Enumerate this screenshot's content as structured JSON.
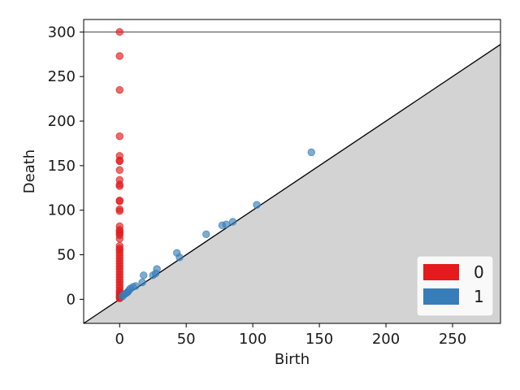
{
  "chart_data": {
    "type": "scatter",
    "xlabel": "Birth",
    "ylabel": "Death",
    "xlim": [
      -27,
      286
    ],
    "ylim": [
      -27,
      314
    ],
    "xticks": [
      0,
      50,
      100,
      150,
      200,
      250
    ],
    "yticks": [
      0,
      50,
      100,
      150,
      200,
      250,
      300
    ],
    "infinity_line": 300,
    "diagonal": true,
    "legend_position": "bottom-right",
    "series": [
      {
        "name": "0",
        "color": "#e41a1c",
        "points": [
          [
            0,
            300
          ],
          [
            0,
            273
          ],
          [
            0,
            235
          ],
          [
            0,
            183
          ],
          [
            0,
            161
          ],
          [
            0,
            156
          ],
          [
            0,
            155
          ],
          [
            0,
            145
          ],
          [
            0,
            134
          ],
          [
            0,
            129
          ],
          [
            0,
            127
          ],
          [
            0,
            111
          ],
          [
            0,
            110
          ],
          [
            0,
            101
          ],
          [
            0,
            99
          ],
          [
            0,
            82
          ],
          [
            0,
            78
          ],
          [
            0,
            76
          ],
          [
            0,
            74
          ],
          [
            0,
            72
          ],
          [
            0,
            68
          ],
          [
            0,
            60
          ],
          [
            0,
            57
          ],
          [
            0,
            55
          ],
          [
            0,
            52
          ],
          [
            0,
            49
          ],
          [
            0,
            46
          ],
          [
            0,
            43
          ],
          [
            0,
            40
          ],
          [
            0,
            37
          ],
          [
            0,
            34
          ],
          [
            0,
            31
          ],
          [
            0,
            28
          ],
          [
            0,
            25
          ],
          [
            0,
            22
          ],
          [
            0,
            19
          ],
          [
            0,
            16
          ],
          [
            0,
            13
          ],
          [
            0,
            10
          ],
          [
            0,
            8
          ],
          [
            0,
            6
          ],
          [
            0,
            4
          ],
          [
            0,
            3
          ],
          [
            0,
            2
          ],
          [
            0,
            1
          ]
        ]
      },
      {
        "name": "1",
        "color": "#377eb8",
        "points": [
          [
            144,
            165
          ],
          [
            103,
            106
          ],
          [
            85,
            87
          ],
          [
            80,
            84
          ],
          [
            77,
            83
          ],
          [
            65,
            73
          ],
          [
            43,
            52
          ],
          [
            45,
            47
          ],
          [
            28,
            34
          ],
          [
            27,
            29
          ],
          [
            25,
            27
          ],
          [
            18,
            27
          ],
          [
            17,
            19
          ],
          [
            12,
            15
          ],
          [
            10,
            14
          ],
          [
            8,
            12
          ],
          [
            7,
            10
          ],
          [
            6,
            8
          ],
          [
            5,
            7
          ],
          [
            4,
            6
          ],
          [
            3,
            5
          ],
          [
            2,
            3
          ]
        ]
      }
    ]
  }
}
